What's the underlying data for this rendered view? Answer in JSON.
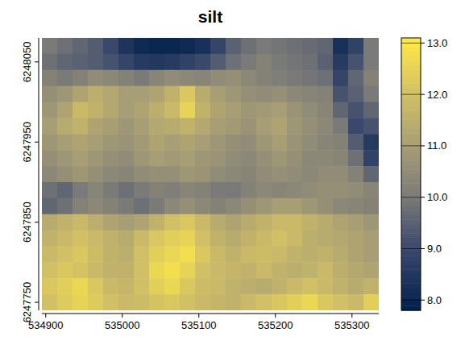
{
  "chart_data": {
    "type": "heatmap",
    "title": "silt",
    "x": [
      534905,
      534925,
      534945,
      534965,
      534985,
      535005,
      535025,
      535045,
      535065,
      535085,
      535105,
      535125,
      535145,
      535165,
      535185,
      535205,
      535225,
      535245,
      535265,
      535285,
      535305,
      535325
    ],
    "y": [
      6248070,
      6248050,
      6248030,
      6248010,
      6247990,
      6247970,
      6247950,
      6247930,
      6247910,
      6247890,
      6247870,
      6247850,
      6247830,
      6247810,
      6247790,
      6247770,
      6247750
    ],
    "values": [
      [
        10.0,
        9.8,
        9.6,
        9.4,
        9.0,
        8.4,
        8.1,
        8.0,
        8.0,
        8.1,
        8.3,
        8.9,
        9.5,
        9.8,
        10.0,
        9.9,
        9.8,
        9.7,
        9.6,
        8.3,
        8.8,
        10.0
      ],
      [
        9.8,
        9.6,
        9.5,
        9.4,
        9.2,
        8.9,
        8.6,
        8.5,
        8.6,
        8.8,
        9.0,
        9.4,
        9.8,
        10.0,
        10.2,
        10.0,
        9.9,
        9.8,
        9.5,
        8.6,
        9.2,
        10.0
      ],
      [
        10.2,
        10.0,
        10.2,
        10.5,
        10.4,
        10.2,
        10.0,
        10.3,
        10.5,
        10.4,
        10.3,
        10.5,
        10.6,
        10.4,
        10.2,
        10.1,
        10.0,
        9.9,
        9.8,
        8.9,
        9.6,
        10.2
      ],
      [
        10.6,
        10.8,
        11.2,
        11.5,
        11.3,
        11.0,
        11.0,
        11.2,
        11.6,
        12.2,
        11.4,
        11.0,
        10.8,
        10.6,
        10.5,
        10.6,
        10.4,
        10.3,
        10.2,
        9.2,
        9.5,
        10.0
      ],
      [
        10.8,
        11.2,
        11.8,
        11.6,
        11.3,
        11.0,
        11.2,
        11.5,
        11.8,
        12.5,
        11.6,
        11.2,
        11.0,
        10.8,
        10.9,
        11.0,
        10.7,
        10.5,
        10.3,
        9.6,
        9.2,
        9.6
      ],
      [
        11.0,
        11.4,
        11.6,
        11.2,
        11.0,
        10.8,
        11.0,
        11.3,
        11.4,
        11.6,
        11.3,
        11.0,
        10.9,
        10.7,
        11.0,
        11.2,
        10.8,
        10.6,
        10.4,
        10.0,
        9.0,
        9.2
      ],
      [
        10.8,
        11.0,
        11.2,
        11.0,
        10.8,
        10.7,
        10.9,
        11.2,
        11.0,
        11.2,
        11.0,
        10.8,
        10.6,
        10.5,
        10.8,
        11.0,
        10.7,
        10.5,
        10.3,
        10.2,
        9.4,
        8.6
      ],
      [
        10.6,
        10.8,
        11.0,
        10.8,
        10.6,
        10.5,
        10.8,
        11.0,
        10.9,
        11.0,
        10.8,
        10.7,
        10.5,
        10.4,
        10.6,
        10.8,
        10.6,
        10.4,
        10.4,
        10.3,
        9.8,
        8.8
      ],
      [
        10.4,
        10.6,
        10.8,
        10.6,
        10.4,
        10.3,
        10.5,
        10.6,
        10.6,
        10.8,
        10.7,
        10.5,
        10.4,
        10.3,
        10.5,
        10.6,
        10.5,
        10.4,
        10.5,
        10.5,
        10.2,
        9.6
      ],
      [
        9.8,
        9.6,
        10.0,
        10.3,
        10.0,
        9.8,
        10.0,
        10.2,
        10.1,
        10.3,
        10.2,
        10.0,
        10.0,
        10.2,
        10.4,
        10.3,
        10.4,
        10.5,
        10.6,
        10.6,
        10.5,
        10.3
      ],
      [
        9.6,
        9.8,
        10.2,
        10.4,
        10.2,
        10.0,
        9.8,
        10.0,
        10.4,
        10.6,
        10.4,
        10.2,
        10.4,
        10.6,
        10.8,
        11.0,
        11.0,
        10.8,
        10.6,
        10.4,
        10.3,
        10.2
      ],
      [
        11.4,
        11.6,
        11.8,
        11.5,
        11.2,
        11.0,
        11.2,
        11.6,
        12.0,
        12.2,
        11.8,
        11.4,
        11.2,
        11.4,
        11.6,
        11.8,
        11.8,
        11.6,
        11.4,
        11.2,
        11.0,
        10.8
      ],
      [
        11.6,
        11.8,
        12.0,
        11.8,
        11.6,
        11.4,
        11.8,
        12.2,
        12.4,
        12.5,
        12.0,
        11.6,
        11.4,
        11.6,
        11.8,
        12.0,
        11.8,
        11.5,
        11.4,
        11.3,
        11.2,
        11.0
      ],
      [
        11.8,
        12.0,
        12.2,
        11.9,
        11.6,
        11.5,
        12.0,
        12.4,
        12.6,
        12.8,
        12.2,
        11.8,
        11.6,
        11.8,
        11.9,
        11.8,
        11.6,
        11.5,
        11.6,
        11.4,
        11.2,
        11.0
      ],
      [
        12.0,
        12.2,
        12.1,
        11.8,
        11.6,
        11.6,
        12.0,
        12.6,
        12.8,
        12.5,
        12.0,
        11.8,
        11.7,
        11.6,
        11.8,
        11.6,
        11.5,
        11.6,
        11.8,
        11.5,
        11.3,
        11.2
      ],
      [
        12.2,
        12.4,
        12.6,
        12.2,
        11.8,
        11.7,
        12.0,
        12.4,
        12.6,
        12.2,
        11.9,
        11.8,
        11.6,
        11.5,
        11.4,
        11.6,
        11.8,
        12.0,
        11.8,
        11.6,
        11.4,
        11.6
      ],
      [
        12.0,
        12.3,
        12.5,
        12.3,
        12.0,
        11.8,
        11.9,
        12.1,
        12.2,
        12.0,
        11.8,
        11.7,
        11.6,
        11.8,
        12.0,
        12.2,
        12.4,
        12.6,
        12.2,
        12.0,
        11.8,
        12.4
      ]
    ],
    "xlim": [
      534895,
      535335
    ],
    "ylim": [
      6247740,
      6248080
    ],
    "xticks": [
      534900,
      535000,
      535100,
      535200,
      535300
    ],
    "yticks": [
      6247750,
      6247850,
      6247950,
      6248050
    ],
    "color_range": [
      7.8,
      13.1
    ],
    "color_ticks": [
      {
        "value": 8,
        "label": "8.0"
      },
      {
        "value": 9,
        "label": "9.0"
      },
      {
        "value": 10,
        "label": "10.0"
      },
      {
        "value": 11,
        "label": "11.0"
      },
      {
        "value": 12,
        "label": "12.0"
      },
      {
        "value": 13,
        "label": "13.0"
      }
    ]
  }
}
